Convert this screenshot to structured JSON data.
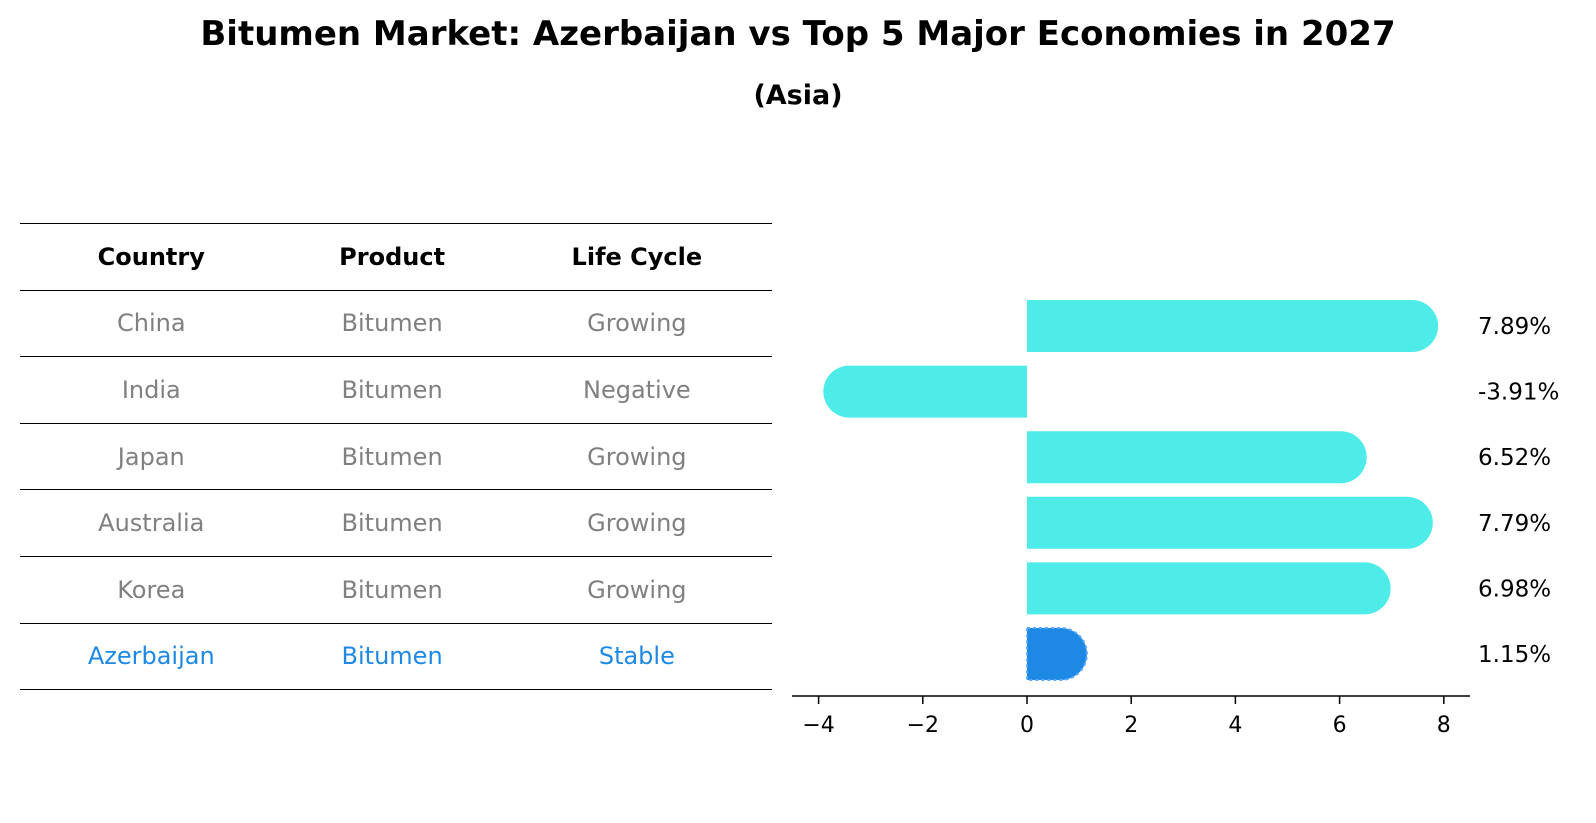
{
  "title": "Bitumen Market: Azerbaijan vs Top 5 Major Economies in 2027",
  "subtitle": "(Asia)",
  "colors": {
    "bar": "#4dece8",
    "highlight": "#1e88e5",
    "muted_text": "#808080"
  },
  "table": {
    "headers": [
      "Country",
      "Product",
      "Life Cycle"
    ],
    "rows": [
      {
        "country": "China",
        "product": "Bitumen",
        "life_cycle": "Growing"
      },
      {
        "country": "India",
        "product": "Bitumen",
        "life_cycle": "Negative"
      },
      {
        "country": "Japan",
        "product": "Bitumen",
        "life_cycle": "Growing"
      },
      {
        "country": "Australia",
        "product": "Bitumen",
        "life_cycle": "Growing"
      },
      {
        "country": "Korea",
        "product": "Bitumen",
        "life_cycle": "Growing"
      },
      {
        "country": "Azerbaijan",
        "product": "Bitumen",
        "life_cycle": "Stable"
      }
    ]
  },
  "chart_data": {
    "type": "bar",
    "orientation": "horizontal",
    "categories": [
      "China",
      "India",
      "Japan",
      "Australia",
      "Korea",
      "Azerbaijan"
    ],
    "values": [
      7.89,
      -3.91,
      6.52,
      7.79,
      6.98,
      1.15
    ],
    "value_labels": [
      "7.89%",
      "-3.91%",
      "6.52%",
      "7.79%",
      "6.98%",
      "1.15%"
    ],
    "highlight": "Azerbaijan",
    "xlim": [
      -4.5,
      8.5
    ],
    "xticks": [
      -4,
      -2,
      0,
      2,
      4,
      6,
      8
    ],
    "xtick_labels": [
      "−4",
      "−2",
      "0",
      "2",
      "4",
      "6",
      "8"
    ],
    "grid": false
  }
}
